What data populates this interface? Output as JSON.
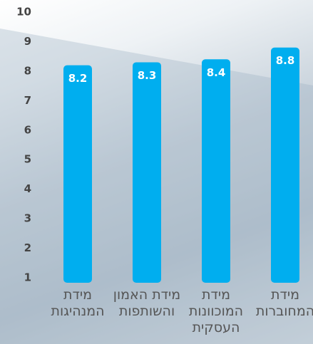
{
  "chart_data": {
    "type": "bar",
    "categories": [
      "מידת המנהיגות",
      "מידת האמון והשותפות",
      "מידת המוכוונות העסקית",
      "מידת המחוברות"
    ],
    "values": [
      8.2,
      8.3,
      8.4,
      8.8
    ],
    "color": "#00aeef",
    "ylim": [
      1,
      10
    ],
    "yticks": [
      1,
      2,
      3,
      4,
      5,
      6,
      7,
      8,
      9,
      10
    ]
  }
}
